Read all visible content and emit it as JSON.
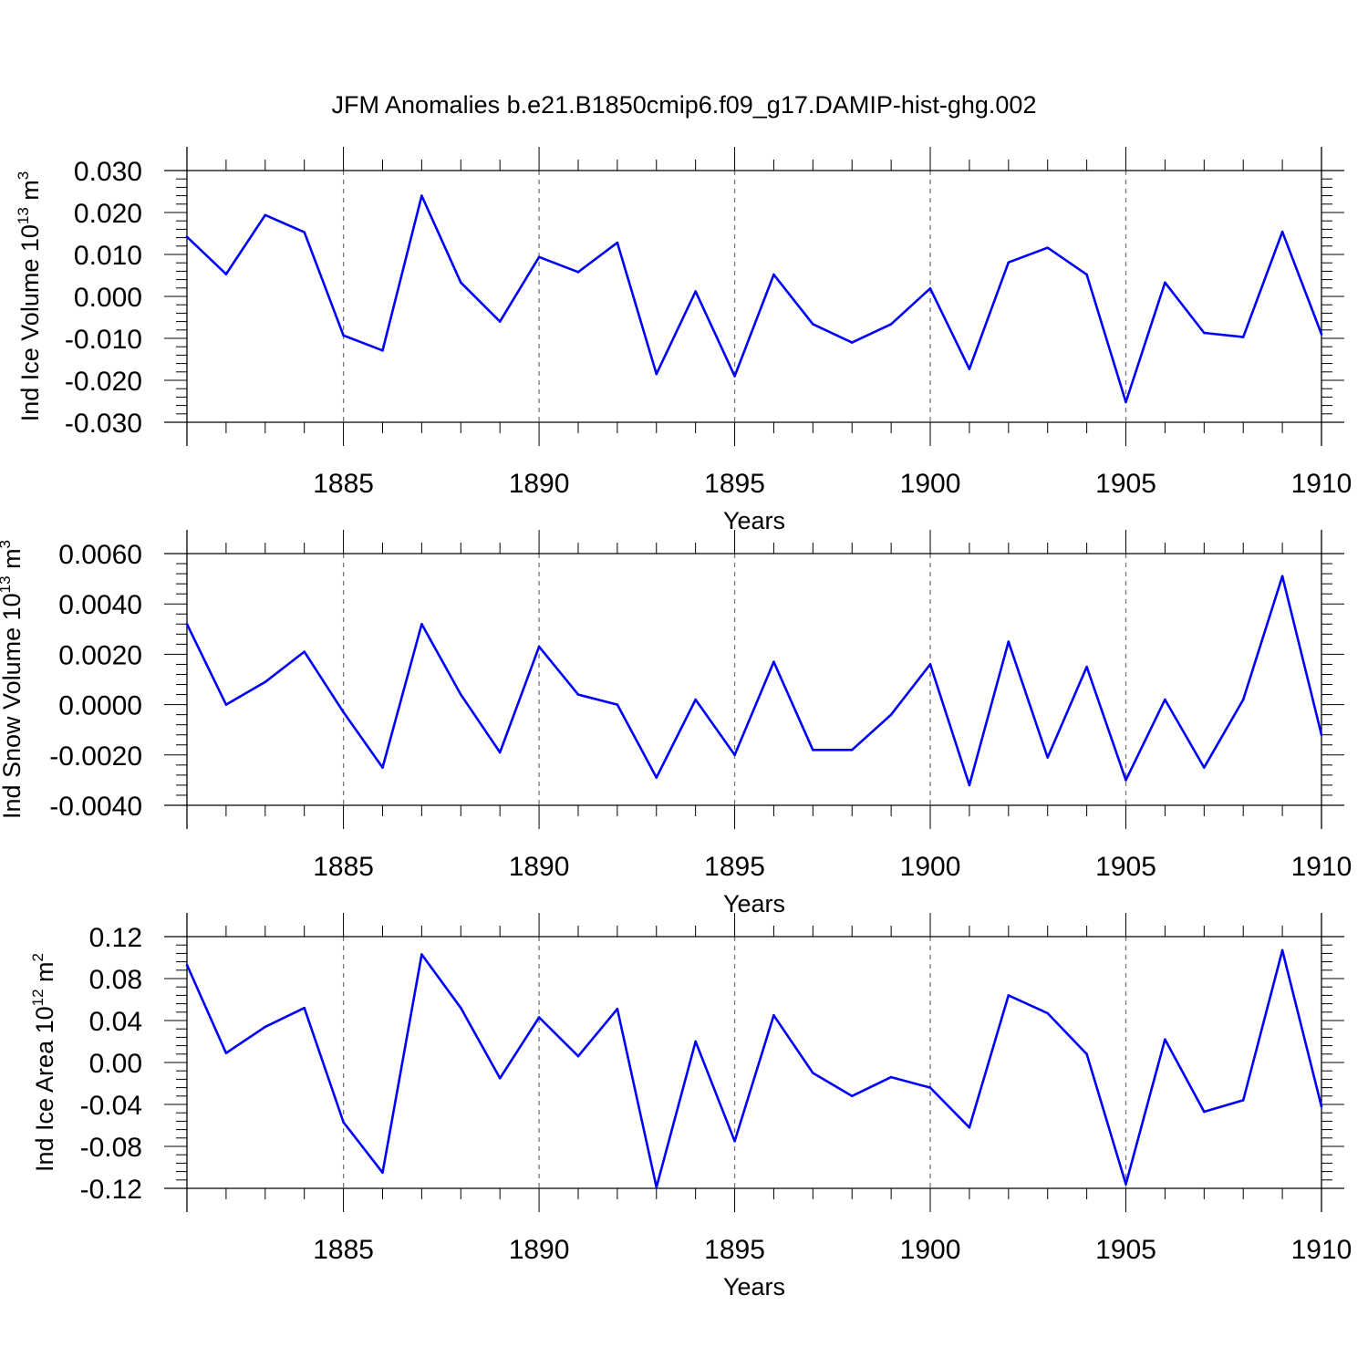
{
  "title": "JFM Anomalies b.e21.B1850cmip6.f09_g17.DAMIP-hist-ghg.002",
  "line_color": "#0000ff",
  "chart_data": [
    {
      "type": "line",
      "title": "",
      "xlabel": "Years",
      "ylabel_text": "Ind Ice Volume 10",
      "ylabel_exp": "13",
      "ylabel_unit": " m",
      "ylabel_unit_exp": "3",
      "xlim": [
        1881,
        1910
      ],
      "ylim": [
        -0.03,
        0.03
      ],
      "x_ticks": [
        1885,
        1890,
        1895,
        1900,
        1905,
        1910
      ],
      "y_ticks": [
        -0.03,
        -0.02,
        -0.01,
        0.0,
        0.01,
        0.02,
        0.03
      ],
      "y_tick_labels": [
        "-0.030",
        "-0.020",
        "-0.010",
        "0.000",
        "0.010",
        "0.020",
        "0.030"
      ],
      "x": [
        1881,
        1882,
        1883,
        1884,
        1885,
        1886,
        1887,
        1888,
        1889,
        1890,
        1891,
        1892,
        1893,
        1894,
        1895,
        1896,
        1897,
        1898,
        1899,
        1900,
        1901,
        1902,
        1903,
        1904,
        1905,
        1906,
        1907,
        1908,
        1909,
        1910
      ],
      "values": [
        0.0142,
        0.0053,
        0.0194,
        0.0153,
        -0.0093,
        -0.0129,
        0.024,
        0.0033,
        -0.006,
        0.0094,
        0.0058,
        0.0128,
        -0.0185,
        0.0012,
        -0.019,
        0.0052,
        -0.0066,
        -0.011,
        -0.0066,
        0.0019,
        -0.0173,
        0.0081,
        0.0116,
        0.0052,
        -0.0252,
        0.0033,
        -0.0087,
        -0.0097,
        0.0154,
        -0.009
      ]
    },
    {
      "type": "line",
      "title": "",
      "xlabel": "Years",
      "ylabel_text": "Ind Snow Volume 10",
      "ylabel_exp": "13",
      "ylabel_unit": " m",
      "ylabel_unit_exp": "3",
      "xlim": [
        1881,
        1910
      ],
      "ylim": [
        -0.004,
        0.006
      ],
      "x_ticks": [
        1885,
        1890,
        1895,
        1900,
        1905,
        1910
      ],
      "y_ticks": [
        -0.004,
        -0.002,
        0.0,
        0.002,
        0.004,
        0.006
      ],
      "y_tick_labels": [
        "-0.0040",
        "-0.0020",
        "0.0000",
        "0.0020",
        "0.0040",
        "0.0060"
      ],
      "x": [
        1881,
        1882,
        1883,
        1884,
        1885,
        1886,
        1887,
        1888,
        1889,
        1890,
        1891,
        1892,
        1893,
        1894,
        1895,
        1896,
        1897,
        1898,
        1899,
        1900,
        1901,
        1902,
        1903,
        1904,
        1905,
        1906,
        1907,
        1908,
        1909,
        1910
      ],
      "values": [
        0.0032,
        -0.0,
        0.0009,
        0.0021,
        -0.0003,
        -0.0025,
        0.0032,
        0.0004,
        -0.0019,
        0.0023,
        0.0004,
        0.0,
        -0.0029,
        0.0002,
        -0.002,
        0.0017,
        -0.0018,
        -0.0018,
        -0.0004,
        0.0016,
        -0.0032,
        0.0025,
        -0.0021,
        0.0015,
        -0.003,
        0.0002,
        -0.0025,
        0.0002,
        0.0051,
        -0.0012
      ]
    },
    {
      "type": "line",
      "title": "",
      "xlabel": "Years",
      "ylabel_text": "Ind Ice Area 10",
      "ylabel_exp": "12",
      "ylabel_unit": " m",
      "ylabel_unit_exp": "2",
      "xlim": [
        1881,
        1910
      ],
      "ylim": [
        -0.12,
        0.12
      ],
      "x_ticks": [
        1885,
        1890,
        1895,
        1900,
        1905,
        1910
      ],
      "y_ticks": [
        -0.12,
        -0.08,
        -0.04,
        0.0,
        0.04,
        0.08,
        0.12
      ],
      "y_tick_labels": [
        "-0.12",
        "-0.08",
        "-0.04",
        "0.00",
        "0.04",
        "0.08",
        "0.12"
      ],
      "x": [
        1881,
        1882,
        1883,
        1884,
        1885,
        1886,
        1887,
        1888,
        1889,
        1890,
        1891,
        1892,
        1893,
        1894,
        1895,
        1896,
        1897,
        1898,
        1899,
        1900,
        1901,
        1902,
        1903,
        1904,
        1905,
        1906,
        1907,
        1908,
        1909,
        1910
      ],
      "values": [
        0.093,
        0.009,
        0.034,
        0.052,
        -0.057,
        -0.105,
        0.103,
        0.052,
        -0.015,
        0.043,
        0.006,
        0.051,
        -0.119,
        0.02,
        -0.075,
        0.045,
        -0.01,
        -0.032,
        -0.014,
        -0.024,
        -0.062,
        0.064,
        0.047,
        0.008,
        -0.116,
        0.022,
        -0.047,
        -0.036,
        0.107,
        -0.042
      ]
    }
  ]
}
